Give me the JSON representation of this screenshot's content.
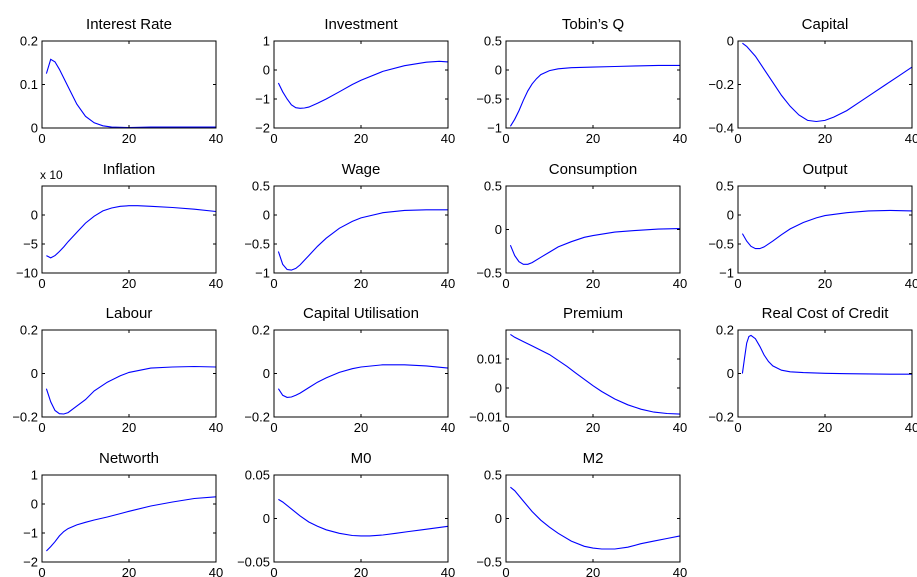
{
  "line_color": "#0000ff",
  "chart_data": [
    {
      "type": "line",
      "title": "Interest Rate",
      "ylim": [
        0,
        0.2
      ],
      "yticks": [
        0,
        0.1,
        0.2
      ],
      "yticklabels": [
        "0",
        "0.1",
        "0.2"
      ],
      "xlim": [
        0,
        40
      ],
      "xticks": [
        0,
        20,
        40
      ],
      "x": [
        1,
        2,
        3,
        4,
        6,
        8,
        10,
        12,
        14,
        16,
        20,
        25,
        30,
        35,
        40
      ],
      "y": [
        0.125,
        0.158,
        0.152,
        0.135,
        0.095,
        0.055,
        0.027,
        0.012,
        0.005,
        0.002,
        0.001,
        0.002,
        0.002,
        0.002,
        0.002
      ]
    },
    {
      "type": "line",
      "title": "Investment",
      "ylim": [
        -2,
        1
      ],
      "yticks": [
        -2,
        -1,
        0,
        1
      ],
      "yticklabels": [
        "−2",
        "−1",
        "0",
        "1"
      ],
      "xlim": [
        0,
        40
      ],
      "xticks": [
        0,
        20,
        40
      ],
      "x": [
        1,
        2,
        3,
        4,
        5,
        6,
        7,
        8,
        10,
        12,
        15,
        18,
        20,
        25,
        30,
        35,
        38,
        40
      ],
      "y": [
        -0.45,
        -0.75,
        -1.0,
        -1.2,
        -1.3,
        -1.32,
        -1.31,
        -1.28,
        -1.15,
        -1.0,
        -0.75,
        -0.5,
        -0.35,
        -0.05,
        0.15,
        0.27,
        0.3,
        0.28
      ]
    },
    {
      "type": "line",
      "title": "Tobin’s Q",
      "ylim": [
        -1,
        0.5
      ],
      "yticks": [
        -1,
        -0.5,
        0,
        0.5
      ],
      "yticklabels": [
        "−1",
        "−0.5",
        "0",
        "0.5"
      ],
      "xlim": [
        0,
        40
      ],
      "xticks": [
        0,
        20,
        40
      ],
      "x": [
        1,
        2,
        3,
        4,
        5,
        6,
        7,
        8,
        10,
        12,
        15,
        20,
        25,
        30,
        35,
        40
      ],
      "y": [
        -0.97,
        -0.85,
        -0.7,
        -0.52,
        -0.36,
        -0.24,
        -0.15,
        -0.08,
        -0.01,
        0.02,
        0.04,
        0.05,
        0.06,
        0.07,
        0.08,
        0.08
      ]
    },
    {
      "type": "line",
      "title": "Capital",
      "ylim": [
        -0.4,
        0
      ],
      "yticks": [
        -0.4,
        -0.2,
        0
      ],
      "yticklabels": [
        "−0.4",
        "−0.2",
        "0"
      ],
      "xlim": [
        0,
        40
      ],
      "xticks": [
        0,
        20,
        40
      ],
      "x": [
        1,
        2,
        4,
        6,
        8,
        10,
        12,
        14,
        16,
        18,
        20,
        22,
        25,
        28,
        31,
        34,
        37,
        40
      ],
      "y": [
        -0.01,
        -0.025,
        -0.07,
        -0.13,
        -0.19,
        -0.25,
        -0.3,
        -0.34,
        -0.365,
        -0.37,
        -0.365,
        -0.35,
        -0.32,
        -0.28,
        -0.24,
        -0.2,
        -0.16,
        -0.12
      ]
    },
    {
      "type": "line",
      "title": "Inflation",
      "multiplier": "x 10",
      "ylim": [
        -10,
        5
      ],
      "yticks": [
        -10,
        -5,
        0
      ],
      "yticklabels": [
        "−10",
        "−5",
        "0"
      ],
      "xlim": [
        0,
        40
      ],
      "xticks": [
        0,
        20,
        40
      ],
      "x": [
        1,
        2,
        3,
        4,
        5,
        6,
        8,
        10,
        12,
        14,
        16,
        18,
        20,
        22,
        25,
        30,
        35,
        40
      ],
      "y": [
        -7.0,
        -7.4,
        -7.0,
        -6.3,
        -5.5,
        -4.6,
        -3.0,
        -1.4,
        -0.2,
        0.7,
        1.2,
        1.5,
        1.6,
        1.6,
        1.5,
        1.3,
        1.0,
        0.6
      ]
    },
    {
      "type": "line",
      "title": "Wage",
      "ylim": [
        -1,
        0.5
      ],
      "yticks": [
        -1,
        -0.5,
        0,
        0.5
      ],
      "yticklabels": [
        "−1",
        "−0.5",
        "0",
        "0.5"
      ],
      "xlim": [
        0,
        40
      ],
      "xticks": [
        0,
        20,
        40
      ],
      "x": [
        1,
        2,
        3,
        4,
        5,
        6,
        7,
        8,
        10,
        12,
        15,
        18,
        20,
        25,
        30,
        35,
        40
      ],
      "y": [
        -0.63,
        -0.85,
        -0.94,
        -0.95,
        -0.92,
        -0.86,
        -0.78,
        -0.7,
        -0.54,
        -0.4,
        -0.23,
        -0.11,
        -0.05,
        0.04,
        0.08,
        0.09,
        0.09
      ]
    },
    {
      "type": "line",
      "title": "Consumption",
      "ylim": [
        -0.5,
        0.5
      ],
      "yticks": [
        -0.5,
        0,
        0.5
      ],
      "yticklabels": [
        "−0.5",
        "0",
        "0.5"
      ],
      "xlim": [
        0,
        40
      ],
      "xticks": [
        0,
        20,
        40
      ],
      "x": [
        1,
        2,
        3,
        4,
        5,
        6,
        8,
        10,
        12,
        15,
        18,
        20,
        25,
        30,
        35,
        40
      ],
      "y": [
        -0.18,
        -0.3,
        -0.37,
        -0.4,
        -0.4,
        -0.38,
        -0.32,
        -0.26,
        -0.2,
        -0.14,
        -0.09,
        -0.07,
        -0.03,
        -0.01,
        0.005,
        0.01
      ]
    },
    {
      "type": "line",
      "title": "Output",
      "ylim": [
        -1,
        0.5
      ],
      "yticks": [
        -1,
        -0.5,
        0,
        0.5
      ],
      "yticklabels": [
        "−1",
        "−0.5",
        "0",
        "0.5"
      ],
      "xlim": [
        0,
        40
      ],
      "xticks": [
        0,
        20,
        40
      ],
      "x": [
        1,
        2,
        3,
        4,
        5,
        6,
        8,
        10,
        12,
        15,
        18,
        20,
        25,
        30,
        35,
        40
      ],
      "y": [
        -0.32,
        -0.45,
        -0.54,
        -0.58,
        -0.58,
        -0.55,
        -0.45,
        -0.34,
        -0.24,
        -0.13,
        -0.05,
        -0.01,
        0.04,
        0.07,
        0.08,
        0.07
      ]
    },
    {
      "type": "line",
      "title": "Labour",
      "ylim": [
        -0.2,
        0.2
      ],
      "yticks": [
        -0.2,
        0,
        0.2
      ],
      "yticklabels": [
        "−0.2",
        "0",
        "0.2"
      ],
      "xlim": [
        0,
        40
      ],
      "xticks": [
        0,
        20,
        40
      ],
      "x": [
        1,
        2,
        3,
        4,
        5,
        6,
        8,
        10,
        12,
        15,
        18,
        20,
        25,
        30,
        35,
        40
      ],
      "y": [
        -0.07,
        -0.13,
        -0.17,
        -0.185,
        -0.186,
        -0.18,
        -0.15,
        -0.12,
        -0.08,
        -0.04,
        -0.01,
        0.005,
        0.025,
        0.03,
        0.032,
        0.03
      ]
    },
    {
      "type": "line",
      "title": "Capital Utilisation",
      "ylim": [
        -0.2,
        0.2
      ],
      "yticks": [
        -0.2,
        0,
        0.2
      ],
      "yticklabels": [
        "−0.2",
        "0",
        "0.2"
      ],
      "xlim": [
        0,
        40
      ],
      "xticks": [
        0,
        20,
        40
      ],
      "x": [
        1,
        2,
        3,
        4,
        5,
        6,
        8,
        10,
        12,
        15,
        18,
        20,
        25,
        30,
        35,
        40
      ],
      "y": [
        -0.07,
        -0.1,
        -0.11,
        -0.108,
        -0.1,
        -0.09,
        -0.065,
        -0.04,
        -0.02,
        0.005,
        0.022,
        0.03,
        0.04,
        0.04,
        0.035,
        0.025
      ]
    },
    {
      "type": "line",
      "title": "Premium",
      "ylim": [
        -0.01,
        0.02
      ],
      "yticks": [
        -0.01,
        0,
        0.01
      ],
      "yticklabels": [
        "−0.01",
        "0",
        "0.01"
      ],
      "xlim": [
        0,
        40
      ],
      "xticks": [
        0,
        20,
        40
      ],
      "x": [
        1,
        2,
        4,
        6,
        8,
        10,
        12,
        14,
        16,
        18,
        20,
        22,
        25,
        28,
        31,
        34,
        37,
        40
      ],
      "y": [
        0.0185,
        0.0175,
        0.016,
        0.0145,
        0.013,
        0.0115,
        0.0095,
        0.0075,
        0.0052,
        0.003,
        0.0008,
        -0.0012,
        -0.0038,
        -0.0058,
        -0.0073,
        -0.0083,
        -0.0088,
        -0.009
      ]
    },
    {
      "type": "line",
      "title": "Real Cost of Credit",
      "ylim": [
        -0.2,
        0.2
      ],
      "yticks": [
        -0.2,
        0,
        0.2
      ],
      "yticklabels": [
        "−0.2",
        "0",
        "0.2"
      ],
      "xlim": [
        0,
        40
      ],
      "xticks": [
        0,
        20,
        40
      ],
      "x": [
        1,
        1.5,
        2,
        2.5,
        3,
        4,
        5,
        6,
        7,
        8,
        10,
        12,
        15,
        20,
        25,
        30,
        35,
        40
      ],
      "y": [
        0.0,
        0.07,
        0.14,
        0.17,
        0.175,
        0.16,
        0.125,
        0.085,
        0.055,
        0.035,
        0.015,
        0.008,
        0.004,
        0.001,
        -0.001,
        -0.002,
        -0.003,
        -0.003
      ]
    },
    {
      "type": "line",
      "title": "Networth",
      "ylim": [
        -2,
        1
      ],
      "yticks": [
        -2,
        -1,
        0,
        1
      ],
      "yticklabels": [
        "−2",
        "−1",
        "0",
        "1"
      ],
      "xlim": [
        0,
        40
      ],
      "xticks": [
        0,
        20,
        40
      ],
      "x": [
        1,
        2,
        3,
        4,
        5,
        6,
        8,
        10,
        12,
        15,
        18,
        20,
        25,
        30,
        35,
        40
      ],
      "y": [
        -1.62,
        -1.47,
        -1.3,
        -1.1,
        -0.95,
        -0.85,
        -0.72,
        -0.63,
        -0.55,
        -0.45,
        -0.33,
        -0.25,
        -0.07,
        0.07,
        0.19,
        0.25
      ]
    },
    {
      "type": "line",
      "title": "M0",
      "ylim": [
        -0.05,
        0.05
      ],
      "yticks": [
        -0.05,
        0,
        0.05
      ],
      "yticklabels": [
        "−0.05",
        "0",
        "0.05"
      ],
      "xlim": [
        0,
        40
      ],
      "xticks": [
        0,
        20,
        40
      ],
      "x": [
        1,
        2,
        4,
        6,
        8,
        10,
        12,
        15,
        18,
        20,
        22,
        25,
        28,
        31,
        34,
        37,
        40
      ],
      "y": [
        0.022,
        0.019,
        0.011,
        0.003,
        -0.004,
        -0.009,
        -0.013,
        -0.017,
        -0.0195,
        -0.02,
        -0.02,
        -0.019,
        -0.017,
        -0.015,
        -0.013,
        -0.011,
        -0.009
      ]
    },
    {
      "type": "line",
      "title": "M2",
      "ylim": [
        -0.5,
        0.5
      ],
      "yticks": [
        -0.5,
        0,
        0.5
      ],
      "yticklabels": [
        "−0.5",
        "0",
        "0.5"
      ],
      "xlim": [
        0,
        40
      ],
      "xticks": [
        0,
        20,
        40
      ],
      "x": [
        1,
        2,
        4,
        6,
        8,
        10,
        12,
        15,
        18,
        20,
        22,
        25,
        28,
        31,
        34,
        37,
        40
      ],
      "y": [
        0.36,
        0.32,
        0.2,
        0.08,
        -0.02,
        -0.1,
        -0.17,
        -0.26,
        -0.32,
        -0.34,
        -0.35,
        -0.35,
        -0.33,
        -0.29,
        -0.26,
        -0.23,
        -0.2
      ]
    }
  ]
}
